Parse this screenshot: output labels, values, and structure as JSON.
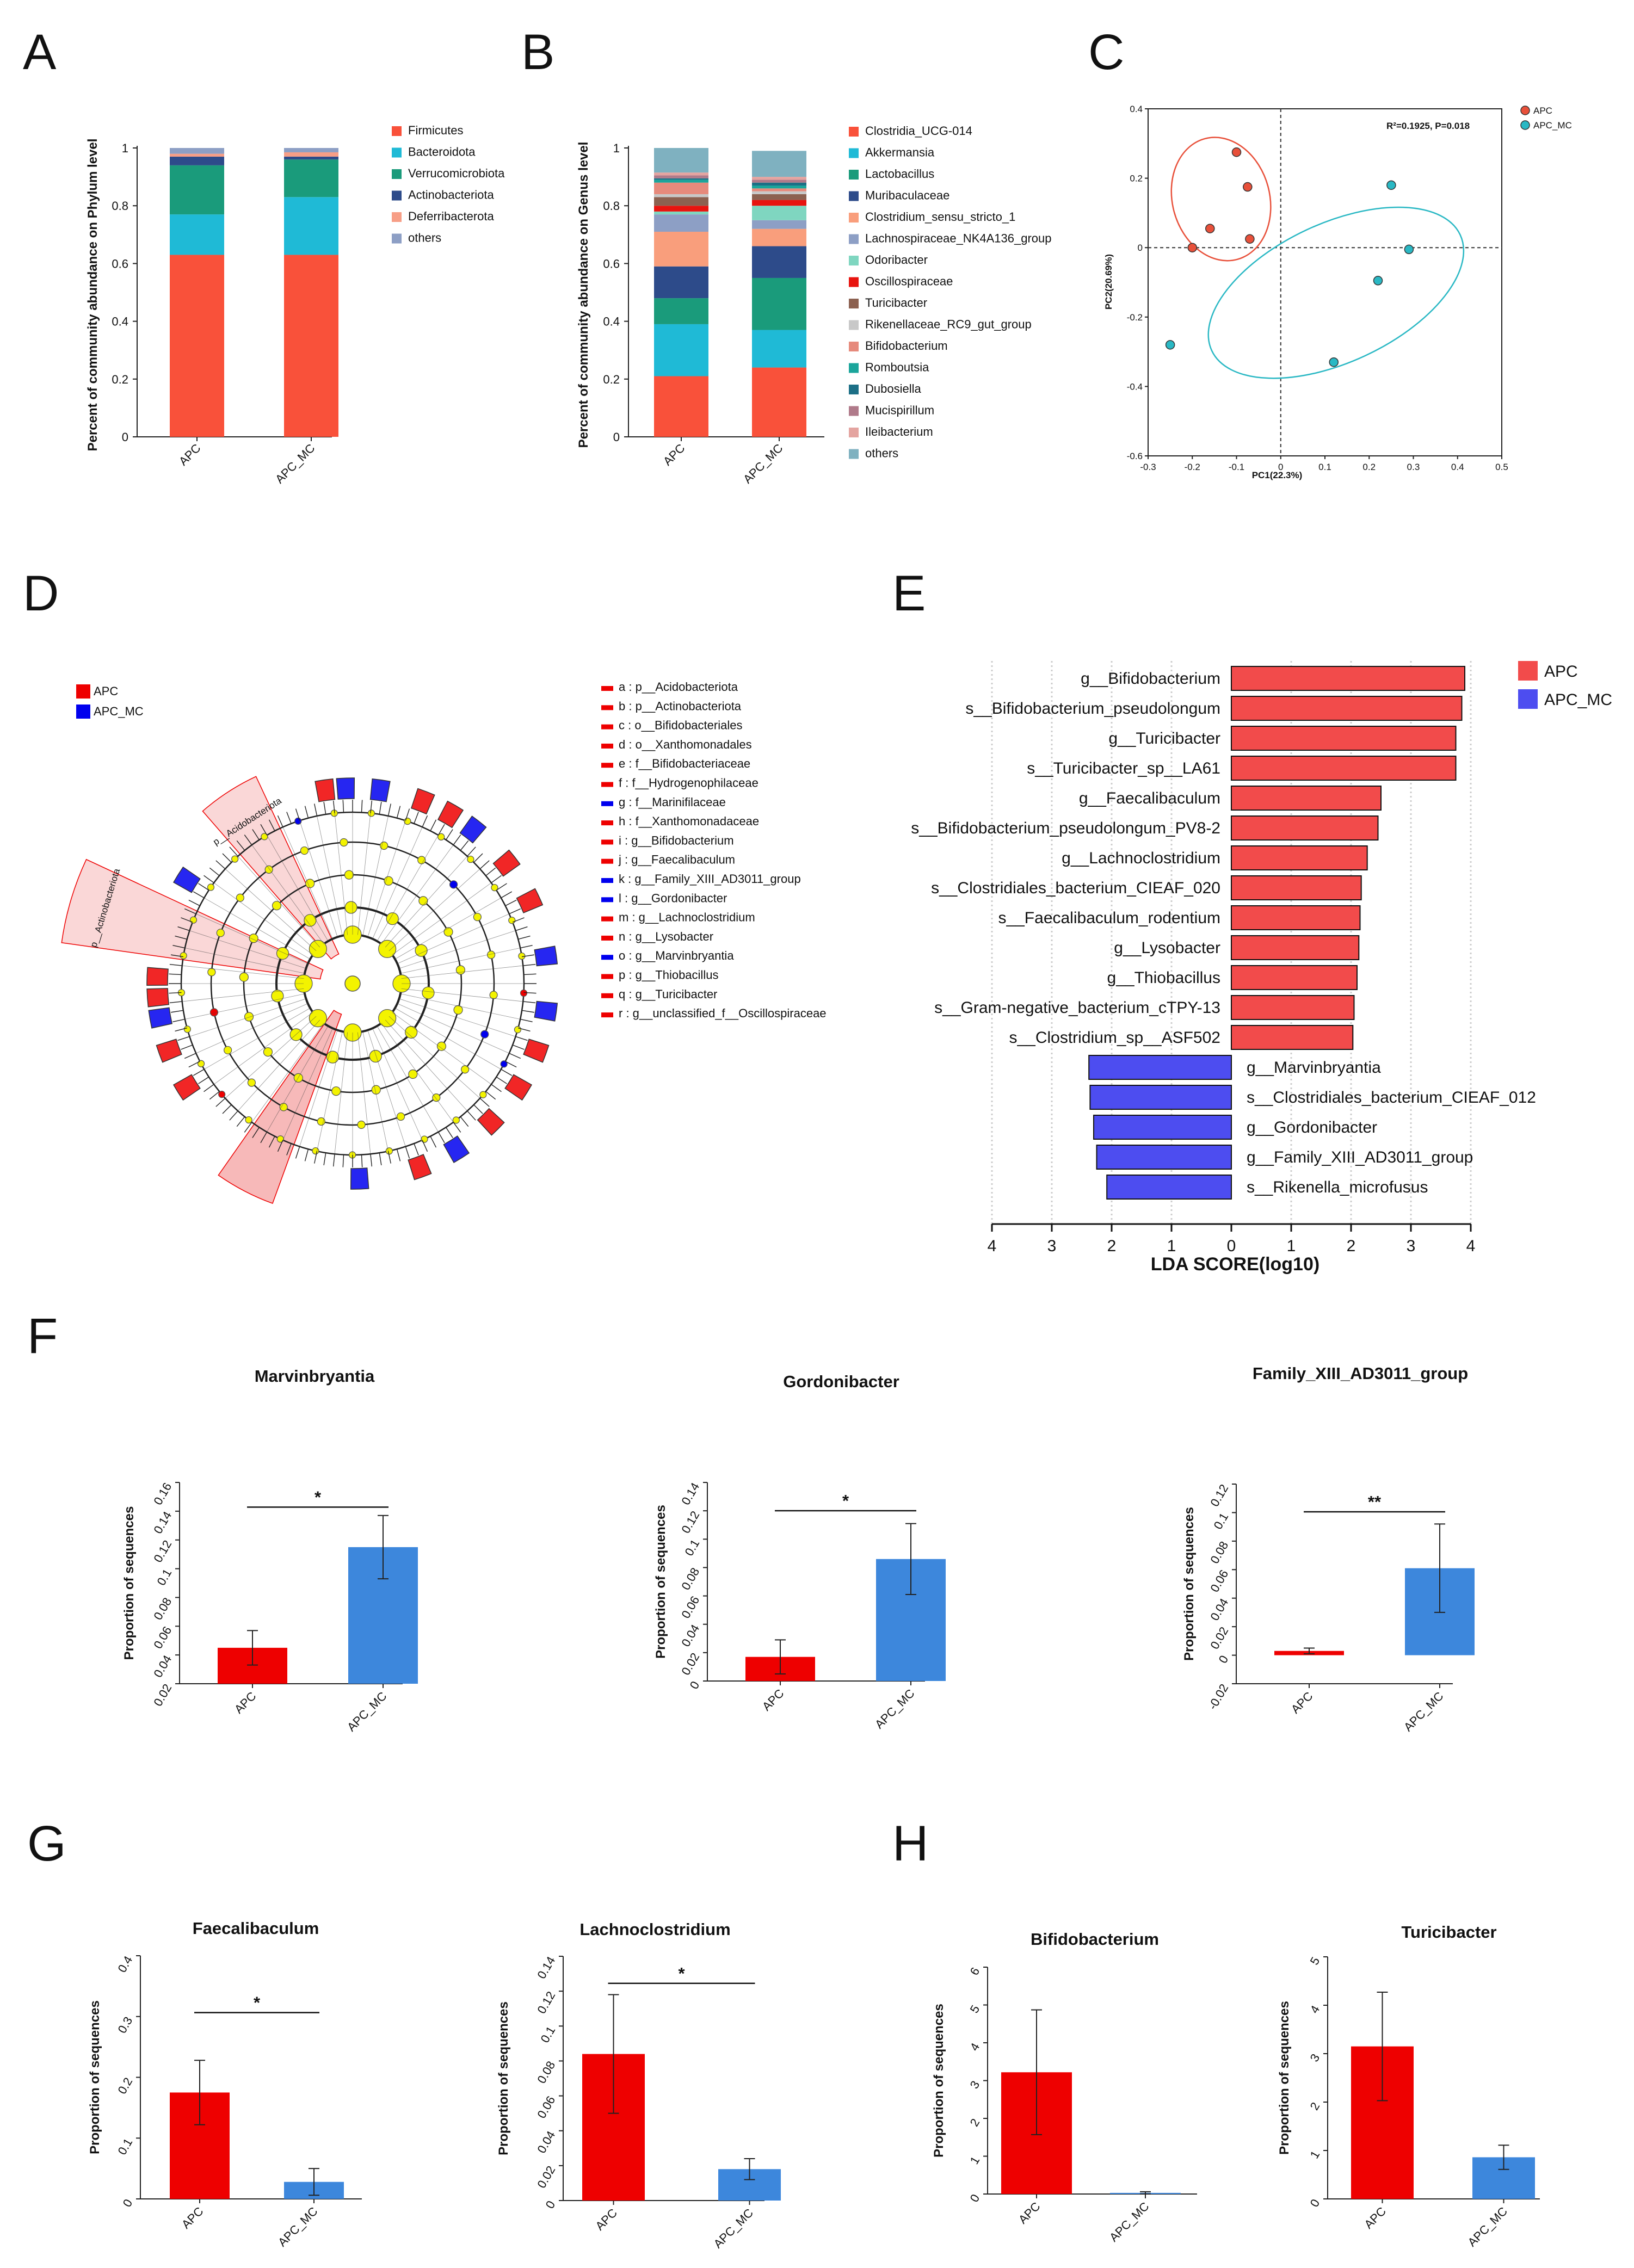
{
  "panel_labels": {
    "A": "A",
    "B": "B",
    "C": "C",
    "D": "D",
    "E": "E",
    "F": "F",
    "G": "G",
    "H": "H"
  },
  "colors": {
    "red": "#ee0000",
    "blue": "#3d87dc",
    "lda_red": "#f24b4b",
    "lda_blue": "#4d4df0"
  },
  "chart_data": [
    {
      "id": "A",
      "type": "bar",
      "stacked": true,
      "categories": [
        "APC",
        "APC_MC"
      ],
      "ylabel": "Percent of community abundance on Phylum level",
      "ylim": [
        0,
        1
      ],
      "yticks": [
        "0",
        "0.2",
        "0.4",
        "0.6",
        "0.8",
        "1"
      ],
      "series": [
        {
          "name": "Firmicutes",
          "color": "#f9513a",
          "values": [
            0.63,
            0.63
          ]
        },
        {
          "name": "Bacteroidota",
          "color": "#1fbad6",
          "values": [
            0.14,
            0.2
          ]
        },
        {
          "name": "Verrucomicrobiota",
          "color": "#1a9b7b",
          "values": [
            0.17,
            0.13
          ]
        },
        {
          "name": "Actinobacteriota",
          "color": "#2d4b8a",
          "values": [
            0.03,
            0.01
          ]
        },
        {
          "name": "Deferribacterota",
          "color": "#f79e86",
          "values": [
            0.01,
            0.015
          ]
        },
        {
          "name": "others",
          "color": "#8d9fc5",
          "values": [
            0.02,
            0.015
          ]
        }
      ]
    },
    {
      "id": "B",
      "type": "bar",
      "stacked": true,
      "categories": [
        "APC",
        "APC_MC"
      ],
      "ylabel": "Percent of community abundance on Genus level",
      "ylim": [
        0,
        1
      ],
      "yticks": [
        "0",
        "0.2",
        "0.4",
        "0.6",
        "0.8",
        "1"
      ],
      "series": [
        {
          "name": "Clostridia_UCG-014",
          "color": "#f9513a",
          "values": [
            0.21,
            0.24
          ]
        },
        {
          "name": "Akkermansia",
          "color": "#1fbad6",
          "values": [
            0.18,
            0.13
          ]
        },
        {
          "name": "Lactobacillus",
          "color": "#1a9b7b",
          "values": [
            0.09,
            0.18
          ]
        },
        {
          "name": "Muribaculaceae",
          "color": "#2d4b8a",
          "values": [
            0.11,
            0.11
          ]
        },
        {
          "name": "Clostridium_sensu_stricto_1",
          "color": "#f99e7c",
          "values": [
            0.12,
            0.06
          ]
        },
        {
          "name": "Lachnospiraceae_NK4A136_group",
          "color": "#8d9fc5",
          "values": [
            0.06,
            0.03
          ]
        },
        {
          "name": "Odoribacter",
          "color": "#7fd6c0",
          "values": [
            0.01,
            0.05
          ]
        },
        {
          "name": "Oscillospiraceae",
          "color": "#e8140f",
          "values": [
            0.02,
            0.02
          ]
        },
        {
          "name": "Turicibacter",
          "color": "#8c6150",
          "values": [
            0.03,
            0.02
          ]
        },
        {
          "name": "Rikenellaceae_RC9_gut_group",
          "color": "#c8c8c8",
          "values": [
            0.01,
            0.01
          ]
        },
        {
          "name": "Bifidobacterium",
          "color": "#e68a7c",
          "values": [
            0.04,
            0.01
          ]
        },
        {
          "name": "Romboutsia",
          "color": "#1ba59b",
          "values": [
            0.01,
            0.01
          ]
        },
        {
          "name": "Dubosiella",
          "color": "#1c6f86",
          "values": [
            0.005,
            0.01
          ]
        },
        {
          "name": "Mucispirillum",
          "color": "#b07a8a",
          "values": [
            0.01,
            0.01
          ]
        },
        {
          "name": "Ileibacterium",
          "color": "#e4a4a0",
          "values": [
            0.01,
            0.01
          ]
        },
        {
          "name": "others",
          "color": "#7fb1c0",
          "values": [
            0.085,
            0.09
          ]
        }
      ]
    },
    {
      "id": "C",
      "type": "scatter",
      "xlabel": "PC1(22.3%)",
      "ylabel": "PC2(20.69%)",
      "xlim": [
        -0.3,
        0.5
      ],
      "ylim": [
        -0.6,
        0.4
      ],
      "xticks": [
        "-0.3",
        "-0.2",
        "-0.1",
        "0",
        "0.1",
        "0.2",
        "0.3",
        "0.4",
        "0.5"
      ],
      "yticks": [
        "0.4",
        "0.2",
        "0",
        "-0.2",
        "-0.4",
        "-0.6"
      ],
      "annotation": "R²=0.1925, P=0.018",
      "series": [
        {
          "name": "APC",
          "color": "#e8503a",
          "x": [
            -0.2,
            -0.16,
            -0.1,
            -0.075,
            -0.07
          ],
          "y": [
            0.0,
            0.055,
            0.275,
            0.175,
            0.025
          ],
          "ellipse": {
            "cx": -0.135,
            "cy": 0.14,
            "rx": 0.11,
            "ry": 0.18,
            "angle": -15
          }
        },
        {
          "name": "APC_MC",
          "color": "#2ab8c4",
          "x": [
            -0.25,
            0.12,
            0.22,
            0.25,
            0.29
          ],
          "y": [
            -0.28,
            -0.33,
            -0.095,
            0.18,
            -0.005
          ],
          "ellipse": {
            "cx": 0.125,
            "cy": -0.13,
            "rx": 0.31,
            "ry": 0.2,
            "angle": -25
          }
        }
      ]
    },
    {
      "id": "D",
      "type": "cladogram",
      "groups": [
        {
          "name": "APC",
          "color": "#ee0000"
        },
        {
          "name": "APC_MC",
          "color": "#0000ee"
        }
      ],
      "sector_labels": [
        "p__Acidobacteriota",
        "p__Actinobacteriota"
      ],
      "key": [
        {
          "text": "a : p__Acidobacteriota",
          "group": "APC"
        },
        {
          "text": "b : p__Actinobacteriota",
          "group": "APC"
        },
        {
          "text": "c : o__Bifidobacteriales",
          "group": "APC"
        },
        {
          "text": "d : o__Xanthomonadales",
          "group": "APC"
        },
        {
          "text": "e : f__Bifidobacteriaceae",
          "group": "APC"
        },
        {
          "text": "f : f__Hydrogenophilaceae",
          "group": "APC"
        },
        {
          "text": "g : f__Marinifilaceae",
          "group": "APC_MC"
        },
        {
          "text": "h : f__Xanthomonadaceae",
          "group": "APC"
        },
        {
          "text": "i : g__Bifidobacterium",
          "group": "APC"
        },
        {
          "text": "j : g__Faecalibaculum",
          "group": "APC"
        },
        {
          "text": "k : g__Family_XIII_AD3011_group",
          "group": "APC_MC"
        },
        {
          "text": "l : g__Gordonibacter",
          "group": "APC_MC"
        },
        {
          "text": "m : g__Lachnoclostridium",
          "group": "APC"
        },
        {
          "text": "n : g__Lysobacter",
          "group": "APC"
        },
        {
          "text": "o : g__Marvinbryantia",
          "group": "APC_MC"
        },
        {
          "text": "p : g__Thiobacillus",
          "group": "APC"
        },
        {
          "text": "q : g__Turicibacter",
          "group": "APC"
        },
        {
          "text": "r : g__unclassified_f__Oscillospiraceae",
          "group": "APC"
        }
      ]
    },
    {
      "id": "E",
      "type": "bar",
      "orientation": "horizontal",
      "xlabel": "LDA SCORE(log10)",
      "xticks": [
        "4",
        "3",
        "2",
        "1",
        "0",
        "1",
        "2",
        "3",
        "4"
      ],
      "legend": [
        {
          "name": "APC",
          "color": "#f24b4b"
        },
        {
          "name": "APC_MC",
          "color": "#4d4df0"
        }
      ],
      "bars": [
        {
          "label": "g__Bifidobacterium",
          "value": 3.9,
          "group": "APC"
        },
        {
          "label": "s__Bifidobacterium_pseudolongum",
          "value": 3.85,
          "group": "APC"
        },
        {
          "label": "g__Turicibacter",
          "value": 3.75,
          "group": "APC"
        },
        {
          "label": "s__Turicibacter_sp__LA61",
          "value": 3.75,
          "group": "APC"
        },
        {
          "label": "g__Faecalibaculum",
          "value": 2.5,
          "group": "APC"
        },
        {
          "label": "s__Bifidobacterium_pseudolongum_PV8-2",
          "value": 2.45,
          "group": "APC"
        },
        {
          "label": "g__Lachnoclostridium",
          "value": 2.27,
          "group": "APC"
        },
        {
          "label": "s__Clostridiales_bacterium_CIEAF_020",
          "value": 2.17,
          "group": "APC"
        },
        {
          "label": "s__Faecalibaculum_rodentium",
          "value": 2.15,
          "group": "APC"
        },
        {
          "label": "g__Lysobacter",
          "value": 2.13,
          "group": "APC"
        },
        {
          "label": "g__Thiobacillus",
          "value": 2.1,
          "group": "APC"
        },
        {
          "label": "s__Gram-negative_bacterium_cTPY-13",
          "value": 2.05,
          "group": "APC"
        },
        {
          "label": "s__Clostridium_sp__ASF502",
          "value": 2.03,
          "group": "APC"
        },
        {
          "label": "g__Marvinbryantia",
          "value": -2.38,
          "group": "APC_MC"
        },
        {
          "label": "s__Clostridiales_bacterium_CIEAF_012",
          "value": -2.36,
          "group": "APC_MC"
        },
        {
          "label": "g__Gordonibacter",
          "value": -2.3,
          "group": "APC_MC"
        },
        {
          "label": "g__Family_XIII_AD3011_group",
          "value": -2.25,
          "group": "APC_MC"
        },
        {
          "label": "s__Rikenella_microfusus",
          "value": -2.08,
          "group": "APC_MC"
        }
      ]
    },
    {
      "id": "F1",
      "type": "bar",
      "title": "Marvinbryantia",
      "ylabel": "Proportion of sequences",
      "categories": [
        "APC",
        "APC_MC"
      ],
      "values": [
        0.045,
        0.115
      ],
      "errors": [
        0.012,
        0.022
      ],
      "ylim": [
        0.02,
        0.16
      ],
      "yticks": [
        "0.02",
        "0.04",
        "0.06",
        "0.08",
        "0.1",
        "0.12",
        "0.14",
        "0.16"
      ],
      "significance": "*"
    },
    {
      "id": "F2",
      "type": "bar",
      "title": "Gordonibacter",
      "ylabel": "Proportion of sequences",
      "categories": [
        "APC",
        "APC_MC"
      ],
      "values": [
        0.017,
        0.086
      ],
      "errors": [
        0.012,
        0.025
      ],
      "ylim": [
        0,
        0.14
      ],
      "yticks": [
        "0",
        "0.02",
        "0.04",
        "0.06",
        "0.08",
        "0.1",
        "0.12",
        "0.14"
      ],
      "significance": "*"
    },
    {
      "id": "F3",
      "type": "bar",
      "title": "Family_XIII_AD3011_group",
      "ylabel": "Proportion of sequences",
      "categories": [
        "APC",
        "APC_MC"
      ],
      "values": [
        0.003,
        0.061
      ],
      "errors": [
        0.002,
        0.031
      ],
      "ylim": [
        -0.02,
        0.12
      ],
      "yticks": [
        "-0.02",
        "0",
        "0.02",
        "0.04",
        "0.06",
        "0.08",
        "0.1",
        "0.12"
      ],
      "significance": "**"
    },
    {
      "id": "G1",
      "type": "bar",
      "title": "Faecalibaculum",
      "ylabel": "Proportion of sequences",
      "categories": [
        "APC",
        "APC_MC"
      ],
      "values": [
        0.175,
        0.028
      ],
      "errors": [
        0.053,
        0.022
      ],
      "ylim": [
        0,
        0.4
      ],
      "yticks": [
        "0",
        "0.1",
        "0.2",
        "0.3",
        "0.4"
      ],
      "significance": "*"
    },
    {
      "id": "G2",
      "type": "bar",
      "title": "Lachnoclostridium",
      "ylabel": "Proportion of sequences",
      "categories": [
        "APC",
        "APC_MC"
      ],
      "values": [
        0.084,
        0.018
      ],
      "errors": [
        0.034,
        0.006
      ],
      "ylim": [
        0,
        0.14
      ],
      "yticks": [
        "0",
        "0.02",
        "0.04",
        "0.06",
        "0.08",
        "0.1",
        "0.12",
        "0.14"
      ],
      "significance": "*"
    },
    {
      "id": "H1",
      "type": "bar",
      "title": "Bifidobacterium",
      "ylabel": "Proportion of sequences",
      "categories": [
        "APC",
        "APC_MC"
      ],
      "values": [
        3.22,
        0.03
      ],
      "errors": [
        1.65,
        0.03
      ],
      "ylim": [
        0,
        6
      ],
      "yticks": [
        "0",
        "1",
        "2",
        "3",
        "4",
        "5",
        "6"
      ],
      "significance": ""
    },
    {
      "id": "H2",
      "type": "bar",
      "title": "Turicibacter",
      "ylabel": "Proportion of sequences",
      "categories": [
        "APC",
        "APC_MC"
      ],
      "values": [
        3.15,
        0.86
      ],
      "errors": [
        1.12,
        0.25
      ],
      "ylim": [
        0,
        5
      ],
      "yticks": [
        "0",
        "1",
        "2",
        "3",
        "4",
        "5"
      ],
      "significance": ""
    }
  ]
}
